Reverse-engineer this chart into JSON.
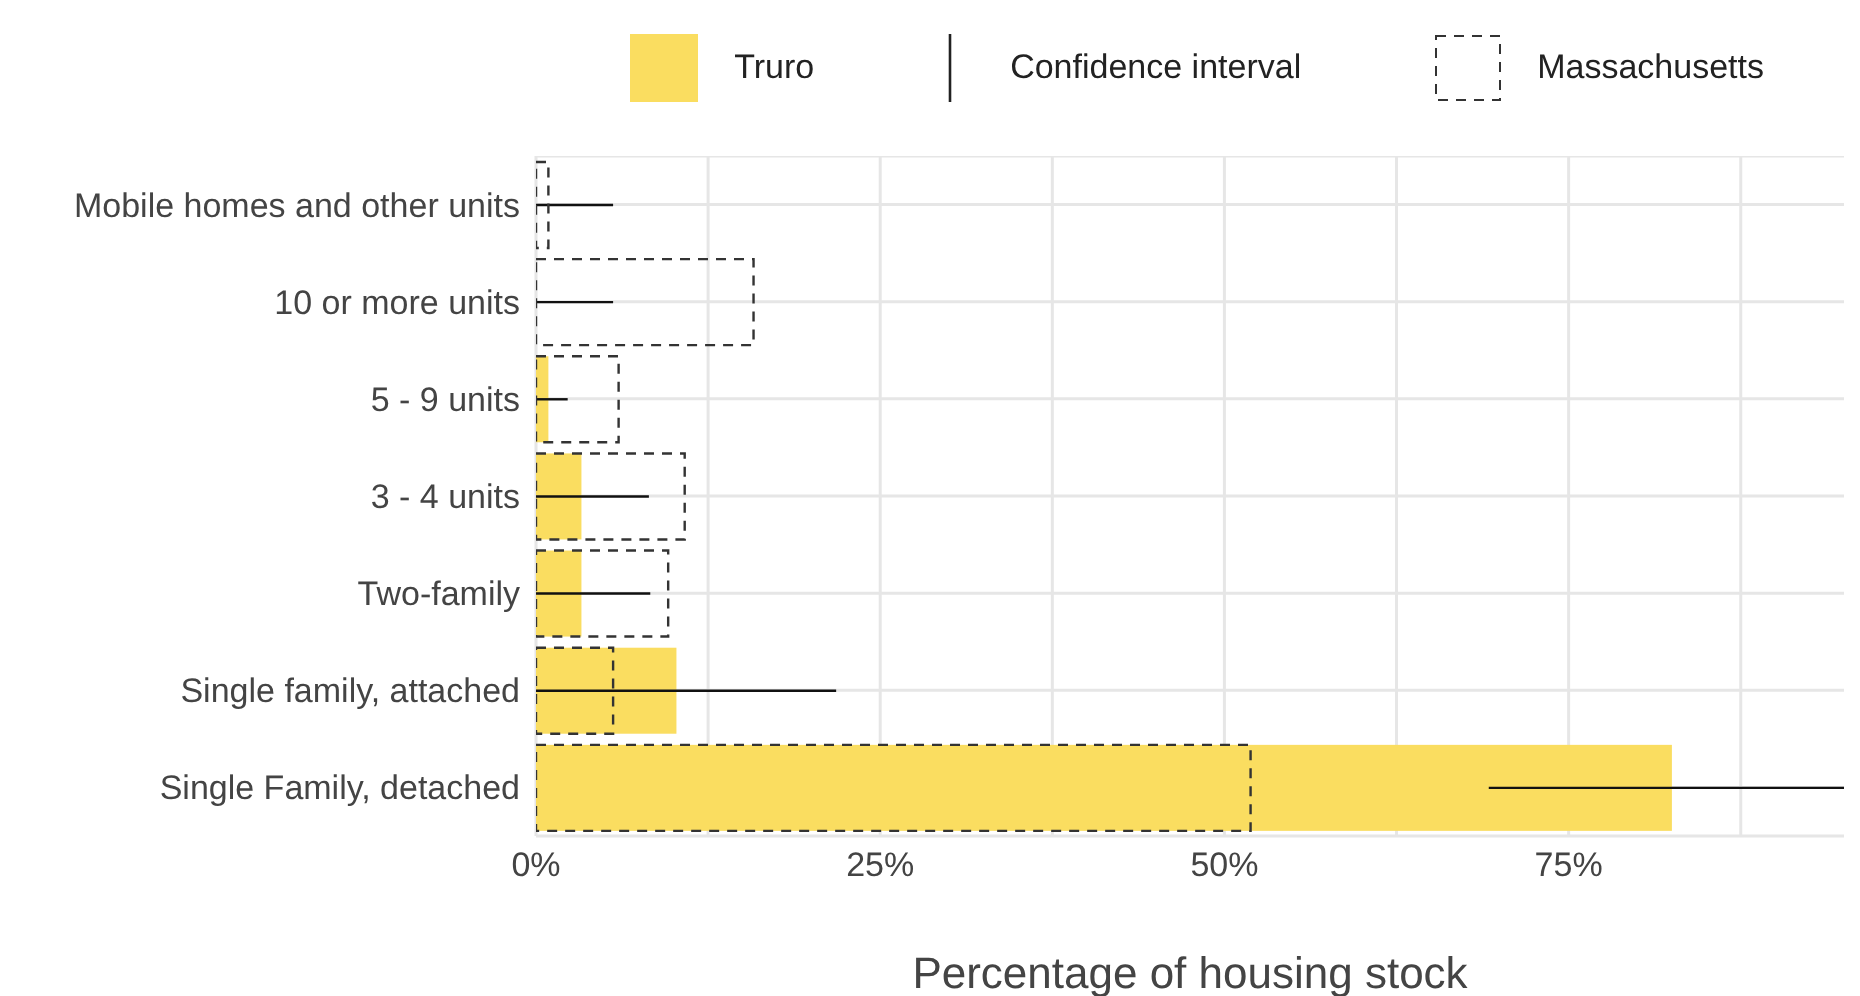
{
  "chart_data": {
    "type": "bar",
    "orientation": "horizontal",
    "xlabel": "Percentage of housing stock",
    "categories": [
      "Mobile homes and other units",
      "10 or more units",
      "5 - 9 units",
      "3 - 4 units",
      "Two-family",
      "Single family, attached",
      "Single Family, detached"
    ],
    "series": [
      {
        "name": "Truro",
        "color": "#fadd60",
        "values": [
          0,
          0,
          0.9,
          3.3,
          3.3,
          10.2,
          82.5
        ],
        "errors": [
          [
            0,
            5.6
          ],
          [
            0,
            5.6
          ],
          [
            0,
            2.3
          ],
          [
            0,
            8.2
          ],
          [
            0,
            8.3
          ],
          [
            0,
            21.8
          ],
          [
            69.2,
            95
          ]
        ]
      },
      {
        "name": "Massachusetts",
        "color": "#333333",
        "line_style": "dashed",
        "values": [
          0.9,
          15.8,
          6.0,
          10.8,
          9.6,
          5.6,
          51.9
        ]
      }
    ],
    "annotations": [
      "Confidence interval"
    ],
    "xlim": [
      0,
      95
    ],
    "xticks": [
      {
        "value": 0,
        "label": "0%"
      },
      {
        "value": 12.5,
        "label": null
      },
      {
        "value": 25,
        "label": "25%"
      },
      {
        "value": 37.5,
        "label": null
      },
      {
        "value": 50,
        "label": "50%"
      },
      {
        "value": 62.5,
        "label": null
      },
      {
        "value": 75,
        "label": "75%"
      },
      {
        "value": 87.5,
        "label": null
      }
    ],
    "grid": true,
    "legend": "top"
  }
}
